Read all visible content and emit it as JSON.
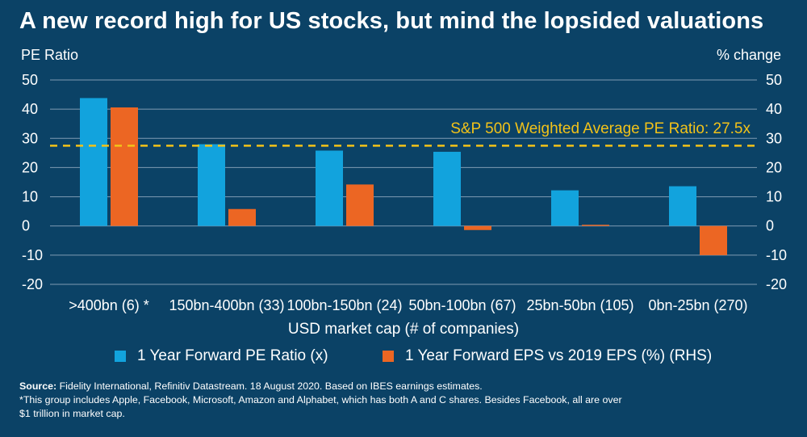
{
  "header": {
    "title": "A new record high for US stocks, but mind the lopsided valuations"
  },
  "axes": {
    "left_label": "PE Ratio",
    "right_label": "% change",
    "x_label": "USD market cap (# of companies)"
  },
  "legend": {
    "pe": "1 Year Forward PE Ratio (x)",
    "eps": "1 Year Forward EPS vs 2019 EPS (%) (RHS)"
  },
  "footer": {
    "source_label": "Source:",
    "source_text": "Fidelity International, Refinitiv Datastream. 18 August 2020. Based on IBES earnings estimates.",
    "note_line1": "*This group includes Apple, Facebook, Microsoft, Amazon and Alphabet, which has both A and C shares. Besides Facebook, all are over",
    "note_line2": "$1 trillion in market cap."
  },
  "chart_data": {
    "type": "bar",
    "categories": [
      ">400bn (6) *",
      "150bn-400bn (33)",
      "100bn-150bn (24)",
      "50bn-100bn (67)",
      "25bn-50bn (105)",
      "0bn-25bn (270)"
    ],
    "series": [
      {
        "name": "1 Year Forward PE Ratio (x)",
        "axis": "left",
        "color": "#12a3dd",
        "values": [
          43.8,
          28.0,
          25.8,
          25.4,
          12.2,
          13.6
        ]
      },
      {
        "name": "1 Year Forward EPS vs 2019 EPS (%) (RHS)",
        "axis": "right",
        "color": "#ec6623",
        "values": [
          40.6,
          5.8,
          14.2,
          -1.4,
          0.4,
          -10.0
        ]
      }
    ],
    "ylim": [
      -20,
      50
    ],
    "yticks": [
      50,
      40,
      30,
      20,
      10,
      0,
      -10,
      -20
    ],
    "y2lim": [
      -20,
      50
    ],
    "y2ticks": [
      50,
      40,
      30,
      20,
      10,
      0,
      -10,
      -20
    ],
    "reference_line": {
      "value": 27.5,
      "label": "S&P 500 Weighted Average PE Ratio: 27.5x",
      "color": "#f2c219"
    },
    "grid": true,
    "legend_position": "bottom"
  }
}
